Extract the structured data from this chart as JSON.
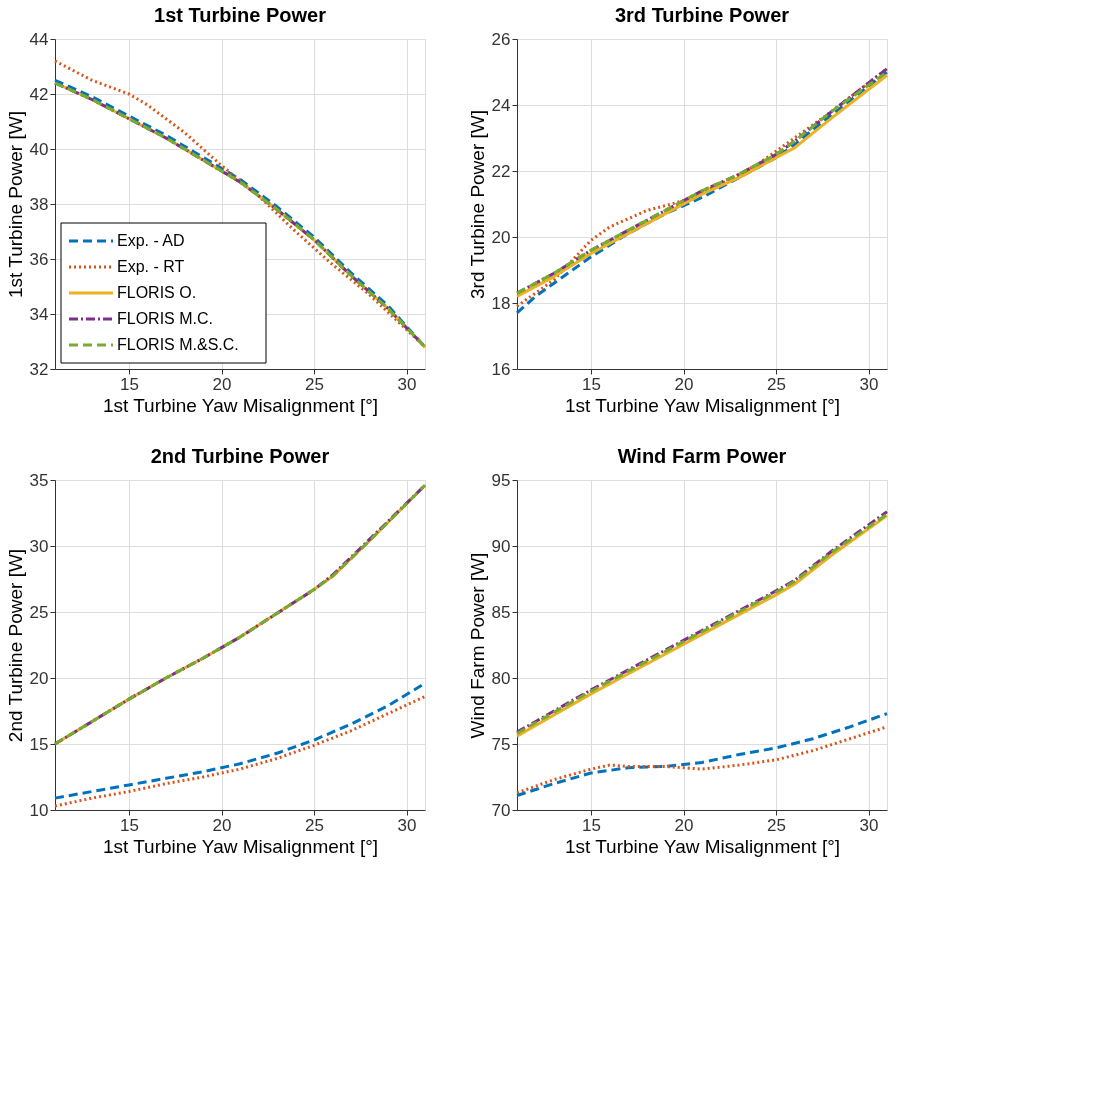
{
  "chart_data": [
    {
      "type": "line",
      "title": "1st Turbine Power",
      "xlabel": "1st Turbine Yaw Misalignment [°]",
      "ylabel": "1st Turbine Power [W]",
      "xlim": [
        11,
        31
      ],
      "xticks": [
        15,
        20,
        25,
        30
      ],
      "ylim": [
        32,
        44
      ],
      "yticks": [
        32,
        34,
        36,
        38,
        40,
        42,
        44
      ],
      "grid": true,
      "legend": "bottom left",
      "series": [
        {
          "name": "Exp. - AD",
          "color": "#0072bd",
          "line_style": "dashed",
          "x": [
            11,
            13,
            15,
            17,
            19,
            21,
            23,
            25,
            27,
            29,
            31
          ],
          "values": [
            42.5,
            41.9,
            41.2,
            40.5,
            39.7,
            38.9,
            37.9,
            36.8,
            35.5,
            34.3,
            32.8
          ]
        },
        {
          "name": "Exp. - RT",
          "color": "#d95319",
          "line_style": "dotted",
          "x": [
            11,
            13,
            15,
            16,
            18,
            20,
            22,
            24,
            26,
            28,
            31
          ],
          "values": [
            43.2,
            42.5,
            42.0,
            41.6,
            40.6,
            39.4,
            38.3,
            37.0,
            35.8,
            34.7,
            32.8
          ]
        },
        {
          "name": "FLORIS O.",
          "color": "#edb120",
          "line_style": "solid",
          "x": [
            11,
            13,
            15,
            17,
            19,
            21,
            23,
            25,
            27,
            29,
            31
          ],
          "values": [
            42.4,
            41.8,
            41.1,
            40.4,
            39.6,
            38.8,
            37.8,
            36.7,
            35.4,
            34.2,
            32.8
          ]
        },
        {
          "name": "FLORIS M.C.",
          "color": "#7e2f8e",
          "line_style": "dashdot",
          "x": [
            11,
            13,
            15,
            17,
            19,
            21,
            23,
            25,
            27,
            29,
            31
          ],
          "values": [
            42.4,
            41.8,
            41.1,
            40.4,
            39.6,
            38.8,
            37.8,
            36.7,
            35.4,
            34.2,
            32.8
          ]
        },
        {
          "name": "FLORIS M.&S.C.",
          "color": "#77ac30",
          "line_style": "dashed",
          "x": [
            11,
            13,
            15,
            17,
            19,
            21,
            23,
            25,
            27,
            29,
            31
          ],
          "values": [
            42.4,
            41.8,
            41.1,
            40.4,
            39.6,
            38.8,
            37.8,
            36.7,
            35.4,
            34.2,
            32.8
          ]
        }
      ]
    },
    {
      "type": "line",
      "title": "3rd Turbine Power",
      "xlabel": "1st Turbine Yaw Misalignment [°]",
      "ylabel": "3rd Turbine Power [W]",
      "xlim": [
        11,
        31
      ],
      "xticks": [
        15,
        20,
        25,
        30
      ],
      "ylim": [
        16,
        26
      ],
      "yticks": [
        16,
        18,
        20,
        22,
        24,
        26
      ],
      "grid": true,
      "series": [
        {
          "color": "#0072bd",
          "line_style": "dashed",
          "x": [
            11,
            12,
            13,
            15,
            17,
            19,
            21,
            23,
            25,
            26,
            28,
            31
          ],
          "values": [
            17.7,
            18.2,
            18.6,
            19.4,
            20.1,
            20.7,
            21.2,
            21.8,
            22.4,
            22.8,
            23.7,
            25.0
          ]
        },
        {
          "color": "#d95319",
          "line_style": "dotted",
          "x": [
            11,
            13,
            15,
            16,
            18,
            20,
            22,
            24,
            26,
            28,
            31
          ],
          "values": [
            17.9,
            18.7,
            19.9,
            20.3,
            20.8,
            21.1,
            21.6,
            22.2,
            23.0,
            23.8,
            25.1
          ]
        },
        {
          "color": "#edb120",
          "line_style": "solid",
          "x": [
            11,
            13,
            15,
            17,
            19,
            21,
            23,
            25,
            26,
            28,
            31
          ],
          "values": [
            18.2,
            18.8,
            19.5,
            20.1,
            20.7,
            21.3,
            21.8,
            22.4,
            22.7,
            23.6,
            24.9
          ]
        },
        {
          "color": "#7e2f8e",
          "line_style": "dashdot",
          "x": [
            11,
            13,
            15,
            17,
            19,
            21,
            23,
            25,
            26,
            28,
            31
          ],
          "values": [
            18.3,
            18.9,
            19.6,
            20.2,
            20.8,
            21.4,
            21.9,
            22.5,
            22.9,
            23.8,
            25.1
          ]
        },
        {
          "color": "#77ac30",
          "line_style": "dashed",
          "x": [
            11,
            13,
            15,
            17,
            19,
            21,
            23,
            25,
            26,
            28,
            31
          ],
          "values": [
            18.3,
            18.9,
            19.6,
            20.2,
            20.8,
            21.4,
            21.9,
            22.5,
            22.9,
            23.8,
            25.0
          ]
        }
      ]
    },
    {
      "type": "line",
      "title": "2nd Turbine Power",
      "xlabel": "1st Turbine Yaw Misalignment [°]",
      "ylabel": "2nd Turbine Power [W]",
      "xlim": [
        11,
        31
      ],
      "xticks": [
        15,
        20,
        25,
        30
      ],
      "ylim": [
        10,
        35
      ],
      "yticks": [
        10,
        15,
        20,
        25,
        30,
        35
      ],
      "grid": true,
      "series": [
        {
          "color": "#0072bd",
          "line_style": "dashed",
          "x": [
            11,
            13,
            15,
            17,
            19,
            21,
            23,
            25,
            27,
            29,
            31
          ],
          "values": [
            10.9,
            11.4,
            11.9,
            12.4,
            12.9,
            13.5,
            14.3,
            15.3,
            16.5,
            17.9,
            19.6
          ]
        },
        {
          "color": "#d95319",
          "line_style": "dotted",
          "x": [
            11,
            13,
            15,
            17,
            19,
            21,
            23,
            25,
            27,
            29,
            31
          ],
          "values": [
            10.3,
            10.9,
            11.4,
            12.0,
            12.5,
            13.1,
            13.9,
            14.9,
            16.0,
            17.3,
            18.6
          ]
        },
        {
          "color": "#edb120",
          "line_style": "solid",
          "x": [
            11,
            13,
            15,
            17,
            19,
            21,
            23,
            25,
            26,
            28,
            31
          ],
          "values": [
            15.0,
            16.7,
            18.4,
            20.0,
            21.5,
            23.1,
            24.9,
            26.7,
            27.7,
            30.4,
            34.6
          ]
        },
        {
          "color": "#7e2f8e",
          "line_style": "dashdot",
          "x": [
            11,
            13,
            15,
            17,
            19,
            21,
            23,
            25,
            26,
            28,
            31
          ],
          "values": [
            15.0,
            16.7,
            18.4,
            20.0,
            21.5,
            23.1,
            24.9,
            26.7,
            27.8,
            30.5,
            34.6
          ]
        },
        {
          "color": "#77ac30",
          "line_style": "dashed",
          "x": [
            11,
            13,
            15,
            17,
            19,
            21,
            23,
            25,
            26,
            28,
            31
          ],
          "values": [
            15.0,
            16.7,
            18.4,
            20.0,
            21.5,
            23.1,
            24.9,
            26.7,
            27.7,
            30.4,
            34.6
          ]
        }
      ]
    },
    {
      "type": "line",
      "title": "Wind Farm Power",
      "xlabel": "1st Turbine Yaw Misalignment [°]",
      "ylabel": "Wind Farm Power [W]",
      "xlim": [
        11,
        31
      ],
      "xticks": [
        15,
        20,
        25,
        30
      ],
      "ylim": [
        70,
        95
      ],
      "yticks": [
        70,
        75,
        80,
        85,
        90,
        95
      ],
      "grid": true,
      "series": [
        {
          "color": "#0072bd",
          "line_style": "dashed",
          "x": [
            11,
            13,
            15,
            17,
            19,
            21,
            23,
            25,
            27,
            29,
            31
          ],
          "values": [
            71.1,
            72.0,
            72.8,
            73.2,
            73.3,
            73.6,
            74.2,
            74.7,
            75.4,
            76.3,
            77.3
          ]
        },
        {
          "color": "#d95319",
          "line_style": "dotted",
          "x": [
            11,
            13,
            15,
            16,
            17,
            19,
            21,
            23,
            25,
            27,
            29,
            31
          ],
          "values": [
            71.3,
            72.3,
            73.1,
            73.4,
            73.3,
            73.3,
            73.1,
            73.4,
            73.8,
            74.5,
            75.4,
            76.3
          ]
        },
        {
          "color": "#edb120",
          "line_style": "solid",
          "x": [
            11,
            13,
            15,
            17,
            19,
            21,
            23,
            25,
            26,
            28,
            31
          ],
          "values": [
            75.6,
            77.2,
            78.8,
            80.3,
            81.8,
            83.3,
            84.8,
            86.3,
            87.1,
            89.3,
            92.3
          ]
        },
        {
          "color": "#7e2f8e",
          "line_style": "dashdot",
          "x": [
            11,
            13,
            15,
            17,
            19,
            21,
            23,
            25,
            26,
            28,
            31
          ],
          "values": [
            75.9,
            77.5,
            79.1,
            80.6,
            82.1,
            83.6,
            85.1,
            86.6,
            87.4,
            89.6,
            92.6
          ]
        },
        {
          "color": "#77ac30",
          "line_style": "dashed",
          "x": [
            11,
            13,
            15,
            17,
            19,
            21,
            23,
            25,
            26,
            28,
            31
          ],
          "values": [
            75.8,
            77.4,
            79.0,
            80.5,
            82.0,
            83.5,
            85.0,
            86.5,
            87.3,
            89.5,
            92.4
          ]
        }
      ]
    }
  ]
}
